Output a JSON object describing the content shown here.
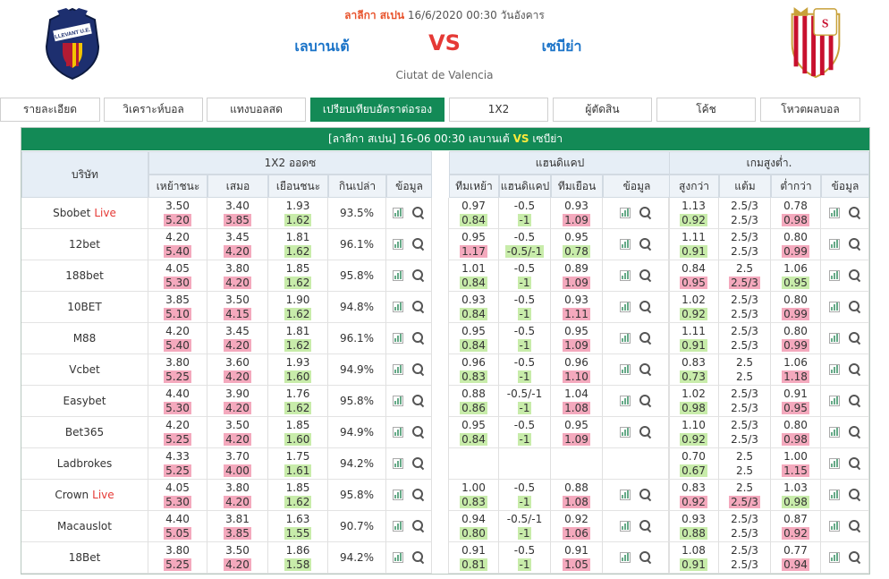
{
  "match": {
    "league": "ลาลีกา สเปน",
    "datetime": "16/6/2020 00:30",
    "weekday": "วันอังคาร",
    "home": "เลบานเต้",
    "vs": "VS",
    "away": "เซบีย่า",
    "venue": "Ciutat de Valencia",
    "home_logo_text": "LLEVANT U.E."
  },
  "tabs": [
    {
      "label": "รายละเอียด",
      "active": false
    },
    {
      "label": "วิเคราะห์บอล",
      "active": false
    },
    {
      "label": "แทงบอลสด",
      "active": false
    },
    {
      "label": "เปรียบเทียบอัตราต่อรอง",
      "active": true
    },
    {
      "label": "1X2",
      "active": false
    },
    {
      "label": "ผู้ตัดสิน",
      "active": false
    },
    {
      "label": "โค้ช",
      "active": false
    },
    {
      "label": "โหวตผลบอล",
      "active": false
    }
  ],
  "panel": {
    "league": "[ลาลีกา สเปน]",
    "datetime": "16-06 00:30",
    "home": "เลบานเต้",
    "vs": "VS",
    "away": "เซบีย่า"
  },
  "headers": {
    "company": "บริษัท",
    "x12": "1X2 ออดซ",
    "handicap": "แฮนดิแคป",
    "ou": "เกมสูงต่ำ.",
    "x12_cols": [
      "เหย้าชนะ",
      "เสมอ",
      "เยือนชนะ",
      "กินเปล่า",
      "ข้อมูล"
    ],
    "hdp_cols": [
      "ทีมเหย้า",
      "แฮนดิแคป",
      "ทีมเยือน",
      "ข้อมูล"
    ],
    "ou_cols": [
      "สูงกว่า",
      "แต้ม",
      "ต่ำกว่า",
      "ข้อมูล"
    ]
  },
  "colors": {
    "accent": "#138a56",
    "live": "#e53935",
    "up": "#f4a9bd",
    "down": "#c8ecaa"
  },
  "icons": {
    "chart": "bar-chart-icon",
    "search": "search-icon"
  },
  "rows": [
    {
      "name": "Sbobet",
      "live": "Live",
      "x12": {
        "home": [
          "3.50",
          "5.20",
          "r"
        ],
        "draw": [
          "3.40",
          "3.85",
          "r"
        ],
        "away": [
          "1.93",
          "1.62",
          "g"
        ],
        "payout": "93.5%"
      },
      "hdp": {
        "home": [
          "0.97",
          "0.84",
          "g"
        ],
        "line": [
          "-0.5",
          "-1",
          "g"
        ],
        "away": [
          "0.93",
          "1.09",
          "r"
        ]
      },
      "ou": {
        "over": [
          "1.13",
          "0.92",
          "g"
        ],
        "line": [
          "2.5/3",
          "2.5/3",
          ""
        ],
        "under": [
          "0.78",
          "0.98",
          "r"
        ]
      }
    },
    {
      "name": "12bet",
      "live": "",
      "x12": {
        "home": [
          "4.20",
          "5.40",
          "r"
        ],
        "draw": [
          "3.45",
          "4.20",
          "r"
        ],
        "away": [
          "1.81",
          "1.62",
          "g"
        ],
        "payout": "96.1%"
      },
      "hdp": {
        "home": [
          "0.95",
          "1.17",
          "r"
        ],
        "line": [
          "-0.5",
          "-0.5/-1",
          "g"
        ],
        "away": [
          "0.95",
          "0.78",
          "g"
        ]
      },
      "ou": {
        "over": [
          "1.11",
          "0.91",
          "g"
        ],
        "line": [
          "2.5/3",
          "2.5/3",
          ""
        ],
        "under": [
          "0.80",
          "0.99",
          "r"
        ]
      }
    },
    {
      "name": "188bet",
      "live": "",
      "x12": {
        "home": [
          "4.05",
          "5.30",
          "r"
        ],
        "draw": [
          "3.80",
          "4.20",
          "r"
        ],
        "away": [
          "1.85",
          "1.62",
          "g"
        ],
        "payout": "95.8%"
      },
      "hdp": {
        "home": [
          "1.01",
          "0.84",
          "g"
        ],
        "line": [
          "-0.5",
          "-1",
          "g"
        ],
        "away": [
          "0.89",
          "1.09",
          "r"
        ]
      },
      "ou": {
        "over": [
          "0.84",
          "0.95",
          "r"
        ],
        "line": [
          "2.5",
          "2.5/3",
          "r"
        ],
        "under": [
          "1.06",
          "0.95",
          "g"
        ]
      }
    },
    {
      "name": "10BET",
      "live": "",
      "x12": {
        "home": [
          "3.85",
          "5.10",
          "r"
        ],
        "draw": [
          "3.50",
          "4.15",
          "r"
        ],
        "away": [
          "1.90",
          "1.62",
          "g"
        ],
        "payout": "94.8%"
      },
      "hdp": {
        "home": [
          "0.93",
          "0.84",
          "g"
        ],
        "line": [
          "-0.5",
          "-1",
          "g"
        ],
        "away": [
          "0.93",
          "1.11",
          "r"
        ]
      },
      "ou": {
        "over": [
          "1.02",
          "0.92",
          "g"
        ],
        "line": [
          "2.5/3",
          "2.5/3",
          ""
        ],
        "under": [
          "0.80",
          "0.99",
          "r"
        ]
      }
    },
    {
      "name": "M88",
      "live": "",
      "x12": {
        "home": [
          "4.20",
          "5.40",
          "r"
        ],
        "draw": [
          "3.45",
          "4.20",
          "r"
        ],
        "away": [
          "1.81",
          "1.62",
          "g"
        ],
        "payout": "96.1%"
      },
      "hdp": {
        "home": [
          "0.95",
          "0.84",
          "g"
        ],
        "line": [
          "-0.5",
          "-1",
          "g"
        ],
        "away": [
          "0.95",
          "1.09",
          "r"
        ]
      },
      "ou": {
        "over": [
          "1.11",
          "0.91",
          "g"
        ],
        "line": [
          "2.5/3",
          "2.5/3",
          ""
        ],
        "under": [
          "0.80",
          "0.99",
          "r"
        ]
      }
    },
    {
      "name": "Vcbet",
      "live": "",
      "x12": {
        "home": [
          "3.80",
          "5.25",
          "r"
        ],
        "draw": [
          "3.60",
          "4.20",
          "r"
        ],
        "away": [
          "1.93",
          "1.60",
          "g"
        ],
        "payout": "94.9%"
      },
      "hdp": {
        "home": [
          "0.96",
          "0.83",
          "g"
        ],
        "line": [
          "-0.5",
          "-1",
          "g"
        ],
        "away": [
          "0.96",
          "1.10",
          "r"
        ]
      },
      "ou": {
        "over": [
          "0.83",
          "0.73",
          "g"
        ],
        "line": [
          "2.5",
          "2.5",
          ""
        ],
        "under": [
          "1.06",
          "1.18",
          "r"
        ]
      }
    },
    {
      "name": "Easybet",
      "live": "",
      "x12": {
        "home": [
          "4.40",
          "5.30",
          "r"
        ],
        "draw": [
          "3.90",
          "4.20",
          "r"
        ],
        "away": [
          "1.76",
          "1.62",
          "g"
        ],
        "payout": "95.8%"
      },
      "hdp": {
        "home": [
          "0.88",
          "0.86",
          "g"
        ],
        "line": [
          "-0.5/-1",
          "-1",
          "g"
        ],
        "away": [
          "1.04",
          "1.08",
          "r"
        ]
      },
      "ou": {
        "over": [
          "1.02",
          "0.98",
          "g"
        ],
        "line": [
          "2.5/3",
          "2.5/3",
          ""
        ],
        "under": [
          "0.91",
          "0.95",
          "r"
        ]
      }
    },
    {
      "name": "Bet365",
      "live": "",
      "x12": {
        "home": [
          "4.20",
          "5.25",
          "r"
        ],
        "draw": [
          "3.50",
          "4.20",
          "r"
        ],
        "away": [
          "1.85",
          "1.60",
          "g"
        ],
        "payout": "94.9%"
      },
      "hdp": {
        "home": [
          "0.95",
          "0.84",
          "g"
        ],
        "line": [
          "-0.5",
          "-1",
          "g"
        ],
        "away": [
          "0.95",
          "1.09",
          "r"
        ]
      },
      "ou": {
        "over": [
          "1.10",
          "0.92",
          "g"
        ],
        "line": [
          "2.5/3",
          "2.5/3",
          ""
        ],
        "under": [
          "0.80",
          "0.98",
          "r"
        ]
      }
    },
    {
      "name": "Ladbrokes",
      "live": "",
      "x12": {
        "home": [
          "4.33",
          "5.25",
          "r"
        ],
        "draw": [
          "3.70",
          "4.00",
          "r"
        ],
        "away": [
          "1.75",
          "1.61",
          "g"
        ],
        "payout": "94.2%"
      },
      "hdp": null,
      "ou": {
        "over": [
          "0.70",
          "0.67",
          "g"
        ],
        "line": [
          "2.5",
          "2.5",
          ""
        ],
        "under": [
          "1.00",
          "1.15",
          "r"
        ]
      }
    },
    {
      "name": "Crown",
      "live": "Live",
      "x12": {
        "home": [
          "4.05",
          "5.30",
          "r"
        ],
        "draw": [
          "3.80",
          "4.20",
          "r"
        ],
        "away": [
          "1.85",
          "1.62",
          "g"
        ],
        "payout": "95.8%"
      },
      "hdp": {
        "home": [
          "1.00",
          "0.83",
          "g"
        ],
        "line": [
          "-0.5",
          "-1",
          "g"
        ],
        "away": [
          "0.88",
          "1.08",
          "r"
        ]
      },
      "ou": {
        "over": [
          "0.83",
          "0.92",
          "r"
        ],
        "line": [
          "2.5",
          "2.5/3",
          "r"
        ],
        "under": [
          "1.03",
          "0.98",
          "g"
        ]
      }
    },
    {
      "name": "Macauslot",
      "live": "",
      "x12": {
        "home": [
          "4.40",
          "5.05",
          "r"
        ],
        "draw": [
          "3.81",
          "3.85",
          "r"
        ],
        "away": [
          "1.63",
          "1.55",
          "g"
        ],
        "payout": "90.7%"
      },
      "hdp": {
        "home": [
          "0.94",
          "0.80",
          "g"
        ],
        "line": [
          "-0.5/-1",
          "-1",
          "g"
        ],
        "away": [
          "0.92",
          "1.06",
          "r"
        ]
      },
      "ou": {
        "over": [
          "0.93",
          "0.88",
          "g"
        ],
        "line": [
          "2.5/3",
          "2.5/3",
          ""
        ],
        "under": [
          "0.87",
          "0.92",
          "r"
        ]
      }
    },
    {
      "name": "18Bet",
      "live": "",
      "x12": {
        "home": [
          "3.80",
          "5.25",
          "r"
        ],
        "draw": [
          "3.50",
          "4.20",
          "r"
        ],
        "away": [
          "1.86",
          "1.58",
          "g"
        ],
        "payout": "94.2%"
      },
      "hdp": {
        "home": [
          "0.91",
          "0.81",
          "g"
        ],
        "line": [
          "-0.5",
          "-1",
          "g"
        ],
        "away": [
          "0.91",
          "1.05",
          "r"
        ]
      },
      "ou": {
        "over": [
          "1.08",
          "0.91",
          "g"
        ],
        "line": [
          "2.5/3",
          "2.5/3",
          ""
        ],
        "under": [
          "0.77",
          "0.94",
          "r"
        ]
      }
    }
  ]
}
